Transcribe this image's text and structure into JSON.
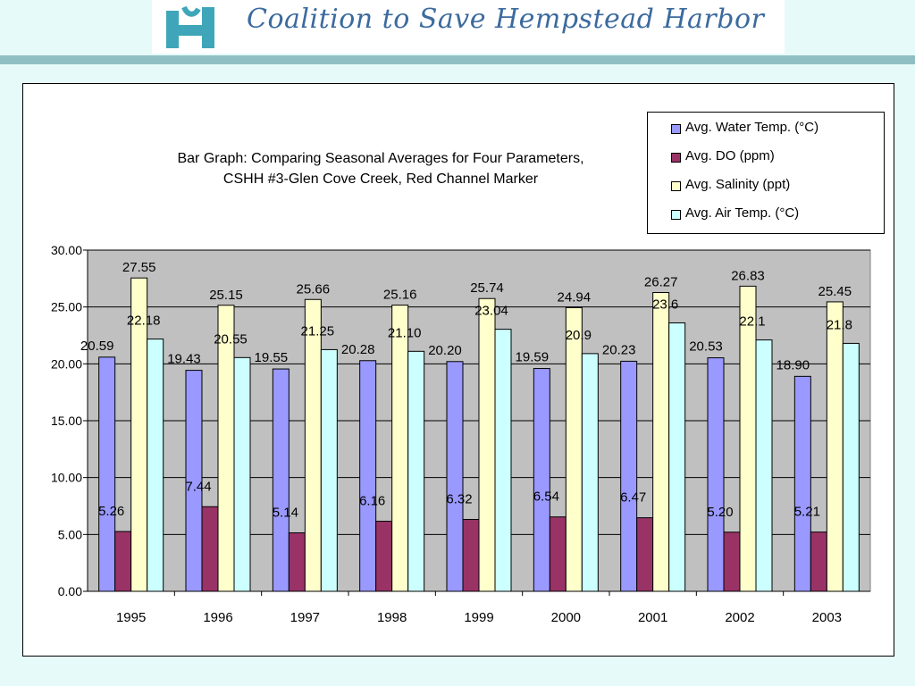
{
  "header": {
    "org_name": "Coalition to Save Hempstead Harbor",
    "logo_icon": "hh-monogram-logo",
    "banner_color": "#ffffff",
    "text_color": "#3b6a9e"
  },
  "chart_data": {
    "type": "bar",
    "title_line1": "Bar Graph: Comparing Seasonal Averages for Four Parameters,",
    "title_line2": "CSHH #3-Glen Cove Creek, Red Channel Marker",
    "xlabel": "",
    "ylabel": "",
    "ylim": [
      0,
      30
    ],
    "yticks": [
      "0.00",
      "5.00",
      "10.00",
      "15.00",
      "20.00",
      "25.00",
      "30.00"
    ],
    "grid": true,
    "plot_background": "#c0c0c0",
    "legend_position": "top-right",
    "categories": [
      "1995",
      "1996",
      "1997",
      "1998",
      "1999",
      "2000",
      "2001",
      "2002",
      "2003"
    ],
    "series": [
      {
        "name": "Avg. Water Temp. (°C)",
        "color": "#9999ff",
        "values": [
          20.59,
          19.43,
          19.55,
          20.28,
          20.2,
          19.59,
          20.23,
          20.53,
          18.9
        ],
        "labels": [
          "20.59",
          "19.43",
          "19.55",
          "20.28",
          "20.20",
          "19.59",
          "20.23",
          "20.53",
          "18.90"
        ]
      },
      {
        "name": "Avg. DO (ppm)",
        "color": "#993366",
        "values": [
          5.26,
          7.44,
          5.14,
          6.16,
          6.32,
          6.54,
          6.47,
          5.2,
          5.21
        ],
        "labels": [
          "5.26",
          "7.44",
          "5.14",
          "6.16",
          "6.32",
          "6.54",
          "6.47",
          "5.20",
          "5.21"
        ]
      },
      {
        "name": "Avg. Salinity (ppt)",
        "color": "#ffffcc",
        "values": [
          27.55,
          25.15,
          25.66,
          25.16,
          25.74,
          24.94,
          26.27,
          26.83,
          25.45
        ],
        "labels": [
          "27.55",
          "25.15",
          "25.66",
          "25.16",
          "25.74",
          "24.94",
          "26.27",
          "26.83",
          "25.45"
        ]
      },
      {
        "name": "Avg. Air Temp. (°C)",
        "color": "#ccffff",
        "values": [
          22.18,
          20.55,
          21.25,
          21.1,
          23.04,
          20.9,
          23.6,
          22.1,
          21.8
        ],
        "labels": [
          "22.18",
          "20.55",
          "21.25",
          "21.10",
          "23.04",
          "20.9",
          "23.6",
          "22.1",
          "21.8"
        ]
      }
    ]
  }
}
